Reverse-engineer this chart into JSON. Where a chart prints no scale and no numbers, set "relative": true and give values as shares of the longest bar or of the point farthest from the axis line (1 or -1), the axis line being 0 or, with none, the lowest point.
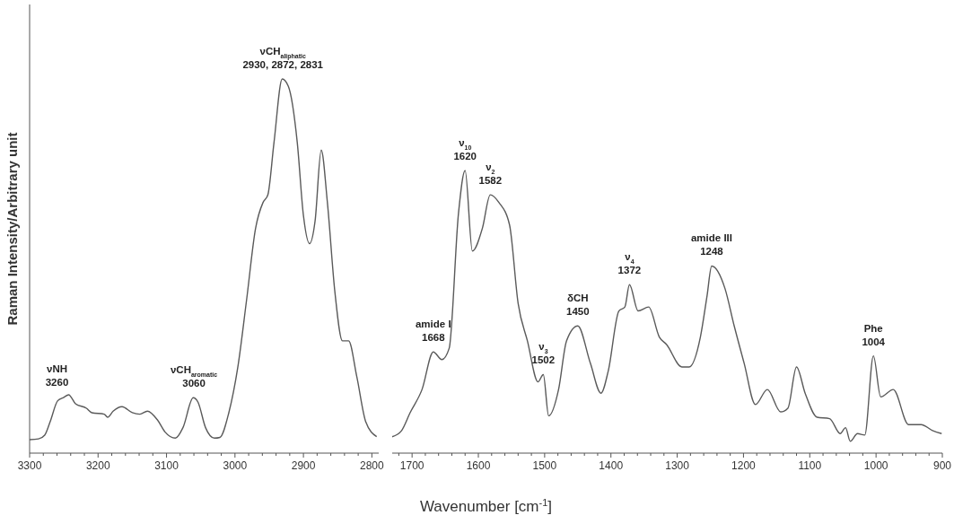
{
  "chart_data": [
    {
      "type": "line",
      "relative": true,
      "ylabel": "Raman Intensity/Arbitrary unit",
      "xlabel": "Wavenumber [cm$^{-1}$]",
      "xlim": [
        3300,
        2790
      ],
      "xticks": [
        3300,
        {
          "value": 3280,
          "label": null
        },
        {
          "value": 3260,
          "label": null
        },
        {
          "value": 3240,
          "label": null
        },
        {
          "value": 3220,
          "label": null
        },
        3200,
        {
          "value": 3180,
          "label": null
        },
        {
          "value": 3160,
          "label": null
        },
        {
          "value": 3140,
          "label": null
        },
        {
          "value": 3120,
          "label": null
        },
        3100,
        {
          "value": 3080,
          "label": null
        },
        {
          "value": 3060,
          "label": null
        },
        {
          "value": 3040,
          "label": null
        },
        {
          "value": 3020,
          "label": null
        },
        3000,
        {
          "value": 2980,
          "label": null
        },
        {
          "value": 2960,
          "label": null
        },
        {
          "value": 2940,
          "label": null
        },
        {
          "value": 2920,
          "label": null
        },
        2900,
        {
          "value": 2880,
          "label": null
        },
        {
          "value": 2860,
          "label": null
        },
        {
          "value": 2840,
          "label": null
        },
        {
          "value": 2820,
          "label": null
        },
        2800
      ],
      "series": [
        {
          "color": "#5a5a5a",
          "x": [
            3300,
            3287,
            3278,
            3270,
            3259,
            3250,
            3243,
            3233,
            3217,
            3209,
            3191,
            3186,
            3178,
            3165,
            3150,
            3139,
            3128,
            3113,
            3102,
            3087,
            3076,
            3061,
            3054,
            3043,
            3030,
            3022,
            3009,
            2996,
            2983,
            2970,
            2959,
            2952,
            2943,
            2931,
            2922,
            2909,
            2900,
            2891,
            2883,
            2874,
            2865,
            2854,
            2843,
            2834,
            2822,
            2809,
            2793
          ],
          "values": [
            0.036,
            0.038,
            0.048,
            0.084,
            0.14,
            0.149,
            0.156,
            0.132,
            0.12,
            0.108,
            0.104,
            0.096,
            0.112,
            0.124,
            0.108,
            0.104,
            0.112,
            0.088,
            0.056,
            0.04,
            0.068,
            0.148,
            0.136,
            0.068,
            0.04,
            0.042,
            0.108,
            0.228,
            0.41,
            0.6,
            0.67,
            0.69,
            0.83,
            1.0,
            0.98,
            0.83,
            0.635,
            0.56,
            0.62,
            0.81,
            0.67,
            0.43,
            0.3,
            0.3,
            0.204,
            0.084,
            0.044
          ]
        }
      ],
      "annotations": [
        {
          "text": "νNH\n3260",
          "x": 3260,
          "y": 0.15
        },
        {
          "text": "νCH$_{aromatic}$\n3060",
          "x": 3060,
          "y": 0.148
        },
        {
          "text": "νCH$_{aliphatic}$\n2930, 2872, 2831",
          "x": 2930,
          "y": 1.0
        }
      ]
    },
    {
      "type": "line",
      "relative": true,
      "xlim": [
        1730,
        900
      ],
      "xticks": [
        {
          "value": 1720,
          "label": null
        },
        1700,
        {
          "value": 1680,
          "label": null
        },
        {
          "value": 1660,
          "label": null
        },
        {
          "value": 1640,
          "label": null
        },
        {
          "value": 1620,
          "label": null
        },
        1600,
        {
          "value": 1580,
          "label": null
        },
        {
          "value": 1560,
          "label": null
        },
        {
          "value": 1540,
          "label": null
        },
        {
          "value": 1520,
          "label": null
        },
        1500,
        {
          "value": 1480,
          "label": null
        },
        {
          "value": 1460,
          "label": null
        },
        {
          "value": 1440,
          "label": null
        },
        {
          "value": 1420,
          "label": null
        },
        1400,
        {
          "value": 1380,
          "label": null
        },
        {
          "value": 1360,
          "label": null
        },
        {
          "value": 1340,
          "label": null
        },
        {
          "value": 1320,
          "label": null
        },
        1300,
        {
          "value": 1280,
          "label": null
        },
        {
          "value": 1260,
          "label": null
        },
        {
          "value": 1240,
          "label": null
        },
        {
          "value": 1220,
          "label": null
        },
        1200,
        {
          "value": 1180,
          "label": null
        },
        {
          "value": 1160,
          "label": null
        },
        {
          "value": 1140,
          "label": null
        },
        {
          "value": 1120,
          "label": null
        },
        1100,
        {
          "value": 1080,
          "label": null
        },
        {
          "value": 1060,
          "label": null
        },
        {
          "value": 1040,
          "label": null
        },
        {
          "value": 1020,
          "label": null
        },
        1000,
        {
          "value": 980,
          "label": null
        },
        {
          "value": 960,
          "label": null
        },
        {
          "value": 940,
          "label": null
        },
        {
          "value": 920,
          "label": null
        },
        900
      ],
      "series": [
        {
          "color": "#5a5a5a",
          "x": [
            1730,
            1716,
            1703,
            1685,
            1668,
            1655,
            1644,
            1630,
            1620,
            1609,
            1594,
            1582,
            1569,
            1553,
            1540,
            1526,
            1510,
            1502,
            1494,
            1479,
            1467,
            1450,
            1431,
            1415,
            1404,
            1388,
            1379,
            1372,
            1359,
            1343,
            1327,
            1316,
            1293,
            1282,
            1265,
            1255,
            1248,
            1228,
            1214,
            1199,
            1182,
            1164,
            1144,
            1133,
            1120,
            1107,
            1089,
            1070,
            1054,
            1046,
            1039,
            1028,
            1017,
            1004,
            993,
            974,
            951,
            932,
            914,
            901
          ],
          "values": [
            0.058,
            0.079,
            0.143,
            0.225,
            0.358,
            0.331,
            0.371,
            0.848,
            1,
            0.715,
            0.795,
            0.914,
            0.887,
            0.808,
            0.53,
            0.397,
            0.252,
            0.278,
            0.132,
            0.225,
            0.397,
            0.45,
            0.318,
            0.212,
            0.291,
            0.503,
            0.517,
            0.596,
            0.503,
            0.517,
            0.411,
            0.384,
            0.305,
            0.305,
            0.411,
            0.556,
            0.662,
            0.583,
            0.45,
            0.318,
            0.172,
            0.225,
            0.146,
            0.159,
            0.305,
            0.212,
            0.127,
            0.122,
            0.069,
            0.09,
            0.042,
            0.069,
            0.064,
            0.344,
            0.199,
            0.225,
            0.101,
            0.101,
            0.079,
            0.069
          ]
        }
      ],
      "annotations": [
        {
          "text": "amide I\n1668",
          "x": 1668,
          "y": 0.358
        },
        {
          "text": "ν$_{10}$\n1620",
          "x": 1620,
          "y": 1
        },
        {
          "text": "ν$_{2}$\n1582",
          "x": 1582,
          "y": 0.914
        },
        {
          "text": "ν$_{3}$\n1502",
          "x": 1502,
          "y": 0.278
        },
        {
          "text": "δCH\n1450",
          "x": 1450,
          "y": 0.45
        },
        {
          "text": "ν$_{4}$\n1372",
          "x": 1372,
          "y": 0.596
        },
        {
          "text": "amide III\n1248",
          "x": 1248,
          "y": 0.662
        },
        {
          "text": "Phe\n1004",
          "x": 1004,
          "y": 0.344
        }
      ]
    }
  ]
}
